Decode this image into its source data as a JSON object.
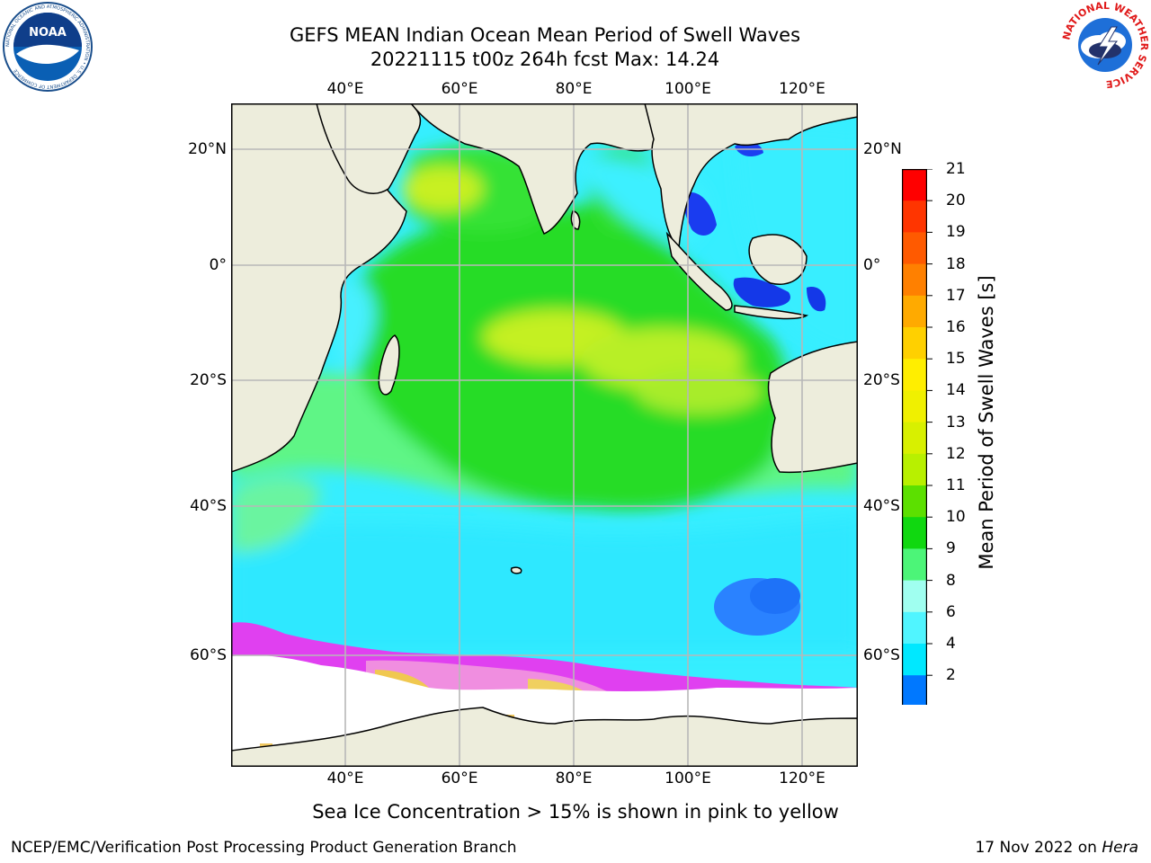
{
  "title_line1": "GEFS MEAN Indian Ocean Mean Period of Swell Waves",
  "title_line2": "20221115 t00z 264h fcst   Max: 14.24",
  "longitude_labels": [
    "40°E",
    "60°E",
    "80°E",
    "100°E",
    "120°E"
  ],
  "latitude_labels": [
    "20°N",
    "0°",
    "20°S",
    "40°S",
    "60°S"
  ],
  "colorbar": {
    "label": "Mean Period of Swell Waves [s]",
    "ticks": [
      "21",
      "20",
      "19",
      "18",
      "17",
      "16",
      "15",
      "14",
      "13",
      "12",
      "11",
      "10",
      "9",
      "8",
      "6",
      "4",
      "2"
    ],
    "colors": [
      "#ff0000",
      "#ff3500",
      "#ff5a00",
      "#ff8000",
      "#ffaa00",
      "#ffd000",
      "#ffee00",
      "#f0f000",
      "#d8f000",
      "#b8f000",
      "#5ce000",
      "#10d810",
      "#4cf578",
      "#a0fff0",
      "#50f5ff",
      "#00e8ff",
      "#0078ff",
      "#0000ee"
    ]
  },
  "footnote": "Sea Ice Concentration > 15% is shown in pink to yellow",
  "credit": "NCEP/EMC/Verification Post Processing Product Generation Branch",
  "date_text": "17 Nov 2022 on ",
  "machine": "Hera",
  "logos": {
    "noaa_text": "NOAA",
    "noaa_ring": "NATIONAL OCEANIC AND ATMOSPHERIC ADMINISTRATION • U.S. DEPARTMENT OF COMMERCE",
    "nws_ring": "NATIONAL WEATHER SERVICE"
  }
}
